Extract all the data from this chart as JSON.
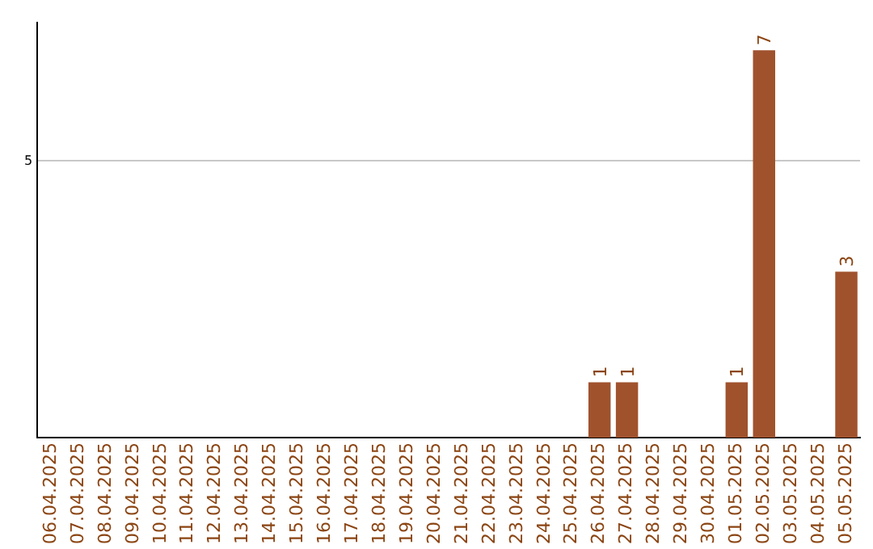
{
  "chart_data": {
    "type": "bar",
    "categories": [
      "06.04.2025",
      "07.04.2025",
      "08.04.2025",
      "09.04.2025",
      "10.04.2025",
      "11.04.2025",
      "12.04.2025",
      "13.04.2025",
      "14.04.2025",
      "15.04.2025",
      "16.04.2025",
      "17.04.2025",
      "18.04.2025",
      "19.04.2025",
      "20.04.2025",
      "21.04.2025",
      "22.04.2025",
      "23.04.2025",
      "24.04.2025",
      "25.04.2025",
      "26.04.2025",
      "27.04.2025",
      "28.04.2025",
      "29.04.2025",
      "30.04.2025",
      "01.05.2025",
      "02.05.2025",
      "03.05.2025",
      "04.05.2025",
      "05.05.2025"
    ],
    "values": [
      null,
      null,
      null,
      null,
      null,
      null,
      null,
      null,
      null,
      null,
      null,
      null,
      null,
      null,
      null,
      null,
      null,
      null,
      null,
      null,
      1,
      1,
      null,
      null,
      null,
      1,
      7,
      null,
      null,
      3
    ],
    "data_labels": true,
    "color": "#a0522d",
    "ylim": [
      0,
      7.5
    ],
    "yticks": [
      5
    ],
    "grid": "y"
  }
}
